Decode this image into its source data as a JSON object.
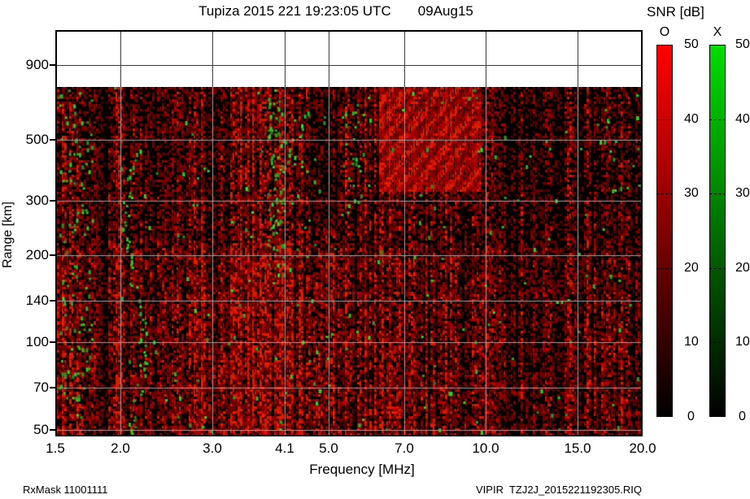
{
  "title": "Tupiza 2015 221 19:23:05 UTC       09Aug15",
  "footer": {
    "left": "RxMask 11001111",
    "right": "VIPIR  TZJ2J_2015221192305.RIQ"
  },
  "axes": {
    "x": {
      "label": "Frequency [MHz]",
      "scale": "log",
      "min_mhz": 1.5,
      "max_mhz": 20,
      "tick_labels": [
        "1.5",
        "2.0",
        "3.0",
        "4.1",
        "5.0",
        "7.0",
        "10.0",
        "15.0",
        "20.0"
      ]
    },
    "y": {
      "label": "Range [km]",
      "scale": "log",
      "tick_labels": [
        "900",
        "500",
        "300",
        "200",
        "140",
        "100",
        "70",
        "50"
      ]
    }
  },
  "legend": {
    "title": "SNR [dB]",
    "min_db": 0,
    "max_db": 50,
    "tick_labels": [
      "50",
      "40",
      "30",
      "20",
      "10",
      "0"
    ],
    "bars": [
      {
        "label": "O",
        "top_color": "#ff0000",
        "bottom_color": "#000000"
      },
      {
        "label": "X",
        "top_color": "#00dd00",
        "bottom_color": "#000000"
      }
    ]
  },
  "colors": {
    "grid_on_data": "#a0a0a0",
    "grid_on_white": "#3c3c3c",
    "data_background": "#040000"
  },
  "chart_data": {
    "type": "heatmap",
    "title": "Tupiza 2015 221 19:23:05 UTC 09Aug15",
    "xlabel": "Frequency [MHz]",
    "ylabel": "Range [km]",
    "x_scale": "log",
    "y_scale": "log",
    "x_ticks_mhz": [
      1.5,
      2.0,
      3.0,
      4.1,
      5.0,
      7.0,
      10.0,
      15.0,
      20.0
    ],
    "y_ticks_km": [
      50,
      70,
      100,
      140,
      200,
      300,
      500,
      900
    ],
    "data_extent_km": [
      47,
      757
    ],
    "colorbar": {
      "label": "SNR [dB]",
      "min_db": 0,
      "max_db": 50,
      "tick_step_db": 10,
      "polarizations": [
        "O",
        "X"
      ]
    },
    "content_summary": "Broadband speckle noise ionogram; no coherent echo traces. Dark red O-mode noise speckle over black background with vertical RFI striping; sparse green X-mode speckles.",
    "red_zones": [
      {
        "f": [
          2.75,
          4.65
        ],
        "km": [
          45,
          760
        ],
        "boost": 1.45
      },
      {
        "f": [
          2.8,
          3.35
        ],
        "km": [
          45,
          230
        ],
        "boost": 1.35
      },
      {
        "f": [
          3.5,
          4.5
        ],
        "km": [
          45,
          230
        ],
        "boost": 1.2
      },
      {
        "f": [
          4.6,
          5.25
        ],
        "km": [
          250,
          760
        ],
        "boost": 0.55
      },
      {
        "f": [
          10.3,
          20.1
        ],
        "km": [
          45,
          760
        ],
        "boost": 0.8
      },
      {
        "f": [
          1.5,
          2.7
        ],
        "km": [
          45,
          760
        ],
        "boost": 0.9
      }
    ],
    "wavy_zone": {
      "f": [
        6.25,
        9.8
      ],
      "km": [
        330,
        760
      ]
    },
    "streak_zone_km": [
      45,
      210
    ],
    "green_zones": [
      {
        "f": [
          1.52,
          1.75
        ],
        "km": [
          55,
          740
        ],
        "density": 0.055
      },
      {
        "f": [
          3.82,
          4.08
        ],
        "km": [
          170,
          750
        ],
        "density": 0.17
      },
      {
        "f": [
          4.1,
          4.75
        ],
        "km": [
          170,
          620
        ],
        "density": 0.035
      },
      {
        "f": [
          5.3,
          5.75
        ],
        "km": [
          280,
          660
        ],
        "density": 0.06
      },
      {
        "f": [
          16.5,
          20.0
        ],
        "km": [
          330,
          760
        ],
        "density": 0.018
      },
      {
        "f": [
          1.5,
          20.0
        ],
        "km": [
          45,
          760
        ],
        "density": 0.006
      }
    ],
    "green_trace": {
      "f_center_mhz": 2.12,
      "km": [
        48,
        460
      ],
      "density": 0.55
    }
  }
}
